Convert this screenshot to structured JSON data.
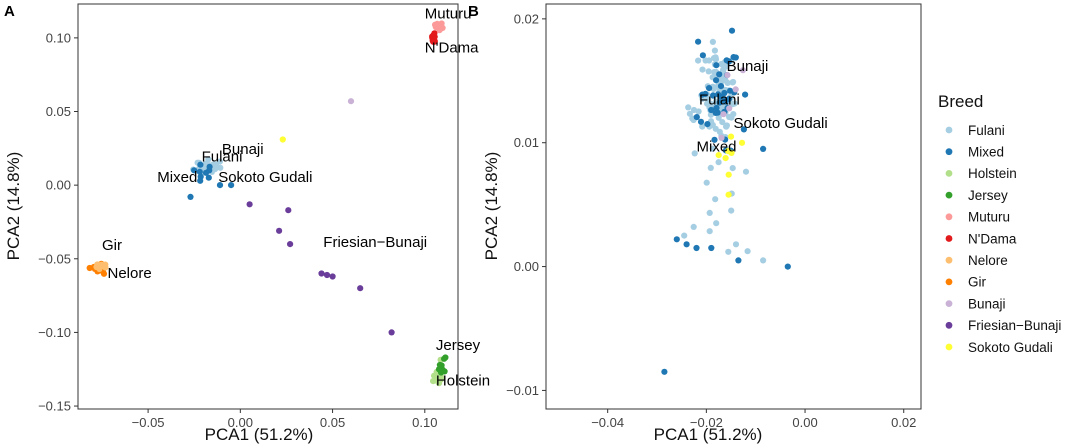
{
  "colors": {
    "Fulani": "#a6cee3",
    "Mixed": "#1f78b4",
    "Holstein": "#b2df8a",
    "Jersey": "#33a02c",
    "Muturu": "#fb9a99",
    "N'Dama": "#e31a1c",
    "Nelore": "#fdbf6f",
    "Gir": "#ff7f00",
    "Bunaji": "#cab2d6",
    "Friesian-Bunaji": "#6a3d9a",
    "Sokoto Gudali": "#ffff33"
  },
  "legend": {
    "title": "Breed",
    "items": [
      "Fulani",
      "Mixed",
      "Holstein",
      "Jersey",
      "Muturu",
      "N'Dama",
      "Nelore",
      "Gir",
      "Bunaji",
      "Friesian−Bunaji",
      "Sokoto Gudali"
    ]
  },
  "chart_data": [
    {
      "panel": "A",
      "type": "scatter",
      "xlabel": "PCA1 (51.2%)",
      "ylabel": "PCA2 (14.8%)",
      "xlim": [
        -0.088,
        0.118
      ],
      "ylim": [
        -0.152,
        0.123
      ],
      "xticks": [
        -0.05,
        0.0,
        0.05,
        0.1
      ],
      "xtick_labels": [
        "−0.05",
        "0.00",
        "0.05",
        "0.10"
      ],
      "yticks": [
        -0.15,
        -0.1,
        -0.05,
        0.0,
        0.05,
        0.1
      ],
      "ytick_labels": [
        "−0.15",
        "−0.10",
        "−0.05",
        "0.00",
        "0.05",
        "0.10"
      ],
      "clusters": [
        {
          "breed": "Fulani",
          "cx": -0.018,
          "cy": 0.012,
          "sx": 0.003,
          "sy": 0.002,
          "n": 60,
          "seed": 11
        },
        {
          "breed": "Mixed",
          "cx": -0.016,
          "cy": 0.006,
          "sx": 0.005,
          "sy": 0.004,
          "n": 9,
          "seed": 12
        },
        {
          "breed": "Muturu",
          "cx": 0.108,
          "cy": 0.108,
          "sx": 0.0015,
          "sy": 0.002,
          "n": 10,
          "seed": 13
        },
        {
          "breed": "N'Dama",
          "cx": 0.105,
          "cy": 0.1,
          "sx": 0.0006,
          "sy": 0.0018,
          "n": 16,
          "seed": 14
        },
        {
          "breed": "Gir",
          "cx": -0.076,
          "cy": -0.057,
          "sx": 0.0018,
          "sy": 0.0014,
          "n": 14,
          "seed": 15
        },
        {
          "breed": "Nelore",
          "cx": -0.075,
          "cy": -0.055,
          "sx": 0.0014,
          "sy": 0.0012,
          "n": 8,
          "seed": 16
        },
        {
          "breed": "Holstein",
          "cx": 0.107,
          "cy": -0.128,
          "sx": 0.0014,
          "sy": 0.006,
          "n": 12,
          "seed": 17
        },
        {
          "breed": "Jersey",
          "cx": 0.109,
          "cy": -0.123,
          "sx": 0.0012,
          "sy": 0.0035,
          "n": 9,
          "seed": 18
        }
      ],
      "points": [
        {
          "breed": "Mixed",
          "x": -0.027,
          "y": -0.008
        },
        {
          "breed": "Mixed",
          "x": -0.011,
          "y": 0.0
        },
        {
          "breed": "Mixed",
          "x": -0.005,
          "y": 0.0
        },
        {
          "breed": "Friesian-Bunaji",
          "x": 0.005,
          "y": -0.013
        },
        {
          "breed": "Friesian-Bunaji",
          "x": 0.021,
          "y": -0.031
        },
        {
          "breed": "Friesian-Bunaji",
          "x": 0.026,
          "y": -0.017
        },
        {
          "breed": "Friesian-Bunaji",
          "x": 0.027,
          "y": -0.04
        },
        {
          "breed": "Friesian-Bunaji",
          "x": 0.044,
          "y": -0.06
        },
        {
          "breed": "Friesian-Bunaji",
          "x": 0.047,
          "y": -0.061
        },
        {
          "breed": "Friesian-Bunaji",
          "x": 0.05,
          "y": -0.062
        },
        {
          "breed": "Friesian-Bunaji",
          "x": 0.065,
          "y": -0.07
        },
        {
          "breed": "Friesian-Bunaji",
          "x": 0.082,
          "y": -0.1
        },
        {
          "breed": "Bunaji",
          "x": 0.06,
          "y": 0.057
        },
        {
          "breed": "Sokoto Gudali",
          "x": 0.023,
          "y": 0.031
        }
      ],
      "annotations": [
        {
          "text": "Muturu",
          "x": 0.1,
          "y": 0.113
        },
        {
          "text": "N'Dama",
          "x": 0.1,
          "y": 0.09
        },
        {
          "text": "Bunaji",
          "x": -0.01,
          "y": 0.021
        },
        {
          "text": "Fulani",
          "x": -0.021,
          "y": 0.016
        },
        {
          "text": "Mixed",
          "x": -0.045,
          "y": 0.002
        },
        {
          "text": "Sokoto Gudali",
          "x": -0.012,
          "y": 0.002
        },
        {
          "text": "Gir",
          "x": -0.075,
          "y": -0.044
        },
        {
          "text": "Nelore",
          "x": -0.072,
          "y": -0.063
        },
        {
          "text": "Friesian−Bunaji",
          "x": 0.045,
          "y": -0.042
        },
        {
          "text": "Jersey",
          "x": 0.106,
          "y": -0.112
        },
        {
          "text": "Holstein",
          "x": 0.106,
          "y": -0.136
        }
      ]
    },
    {
      "panel": "B",
      "type": "scatter",
      "xlabel": "PCA1 (51.2%)",
      "ylabel": "PCA2 (14.8%)",
      "xlim": [
        -0.0525,
        0.0235
      ],
      "ylim": [
        -0.0115,
        0.0212
      ],
      "xticks": [
        -0.04,
        -0.02,
        0.0,
        0.02
      ],
      "xtick_labels": [
        "−0.04",
        "−0.02",
        "0.00",
        "0.02"
      ],
      "yticks": [
        -0.01,
        0.0,
        0.01,
        0.02
      ],
      "ytick_labels": [
        "−0.01",
        "0.00",
        "0.01",
        "0.02"
      ],
      "clusters": [
        {
          "breed": "Fulani",
          "cx": -0.0175,
          "cy": 0.0135,
          "sx": 0.002,
          "sy": 0.0018,
          "n": 110,
          "seed": 21
        },
        {
          "breed": "Mixed",
          "cx": -0.0175,
          "cy": 0.0135,
          "sx": 0.0024,
          "sy": 0.0022,
          "n": 40,
          "seed": 22
        },
        {
          "breed": "Fulani",
          "cx": -0.016,
          "cy": 0.0055,
          "sx": 0.003,
          "sy": 0.0025,
          "n": 14,
          "seed": 23
        },
        {
          "breed": "Bunaji",
          "cx": -0.015,
          "cy": 0.0135,
          "sx": 0.0012,
          "sy": 0.002,
          "n": 6,
          "seed": 24
        },
        {
          "breed": "Sokoto Gudali",
          "cx": -0.0145,
          "cy": 0.009,
          "sx": 0.001,
          "sy": 0.0008,
          "n": 6,
          "seed": 25
        }
      ],
      "points": [
        {
          "breed": "Mixed",
          "x": -0.0285,
          "y": -0.0085
        },
        {
          "breed": "Mixed",
          "x": -0.026,
          "y": 0.0022
        },
        {
          "breed": "Mixed",
          "x": -0.024,
          "y": 0.0018
        },
        {
          "breed": "Mixed",
          "x": -0.022,
          "y": 0.0015
        },
        {
          "breed": "Mixed",
          "x": -0.019,
          "y": 0.0015
        },
        {
          "breed": "Mixed",
          "x": -0.0135,
          "y": 0.0005
        },
        {
          "breed": "Mixed",
          "x": -0.0035,
          "y": 0.0
        },
        {
          "breed": "Mixed",
          "x": -0.0085,
          "y": 0.0095
        },
        {
          "breed": "Fulani",
          "x": -0.0245,
          "y": 0.0025
        },
        {
          "breed": "Fulani",
          "x": -0.0085,
          "y": 0.0005
        },
        {
          "breed": "Fulani",
          "x": -0.018,
          "y": 0.0035
        },
        {
          "breed": "Fulani",
          "x": -0.014,
          "y": 0.0018
        },
        {
          "breed": "Sokoto Gudali",
          "x": -0.0155,
          "y": 0.0058
        },
        {
          "breed": "Sokoto Gudali",
          "x": -0.0175,
          "y": 0.009
        }
      ],
      "annotations": [
        {
          "text": "Bunaji",
          "x": -0.0159,
          "y": 0.0158
        },
        {
          "text": "Fulani",
          "x": -0.0215,
          "y": 0.0131
        },
        {
          "text": "Sokoto Gudali",
          "x": -0.0145,
          "y": 0.0112
        },
        {
          "text": "Mixed",
          "x": -0.022,
          "y": 0.0093
        }
      ]
    }
  ]
}
